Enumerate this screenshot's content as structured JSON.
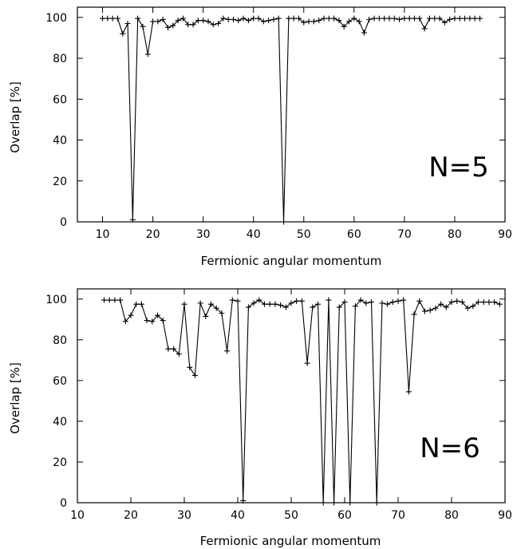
{
  "chart_data": [
    {
      "type": "line",
      "xlabel": "Fermionic angular momentum",
      "ylabel": "Overlap [%]",
      "annotation": "N=5",
      "xlim": [
        5,
        90
      ],
      "ylim": [
        0,
        105
      ],
      "xticks": [
        10,
        20,
        30,
        40,
        50,
        60,
        70,
        80,
        90
      ],
      "yticks": [
        0,
        20,
        40,
        60,
        80,
        100
      ],
      "marker": "plus",
      "color": "#000000",
      "series": [
        {
          "x": [
            10,
            11,
            12,
            13,
            14,
            15,
            16,
            17,
            18,
            19,
            20,
            21,
            22,
            23,
            24,
            25,
            26,
            27,
            28,
            29,
            30,
            31,
            32,
            33,
            34,
            35,
            36,
            37,
            38,
            39,
            40,
            41,
            42,
            43,
            44,
            45,
            46,
            47,
            48,
            49,
            50,
            51,
            52,
            53,
            54,
            55,
            56,
            57,
            58,
            59,
            60,
            61,
            62,
            63,
            64,
            65,
            66,
            67,
            68,
            69,
            70,
            71,
            72,
            73,
            74,
            75,
            76,
            77,
            78,
            79,
            80,
            81,
            82,
            83,
            84,
            85
          ],
          "y": [
            99.5,
            99.5,
            99.5,
            99.5,
            92,
            97,
            1,
            99.5,
            95.5,
            82,
            98,
            98,
            99,
            95,
            96,
            98.5,
            99.5,
            96.5,
            96.5,
            98.5,
            98.5,
            98,
            96.5,
            97,
            99.5,
            99,
            99,
            98.5,
            99.5,
            98.5,
            99.5,
            99.5,
            98,
            98.5,
            99,
            99.5,
            0,
            99.5,
            99.5,
            99.5,
            97.5,
            98,
            98,
            98.5,
            99.5,
            99.5,
            99.5,
            98.5,
            95.5,
            98,
            99.5,
            98,
            92.5,
            99,
            99.5,
            99.5,
            99.5,
            99.5,
            99.5,
            99,
            99.5,
            99.5,
            99.5,
            99.5,
            94.5,
            99.5,
            99.5,
            99.5,
            97.5,
            99,
            99.5,
            99.5,
            99.5,
            99.5,
            99.5,
            99.5
          ]
        }
      ]
    },
    {
      "type": "line",
      "xlabel": "Fermionic angular momentum",
      "ylabel": "Overlap [%]",
      "annotation": "N=6",
      "xlim": [
        10,
        90
      ],
      "ylim": [
        0,
        105
      ],
      "xticks": [
        10,
        20,
        30,
        40,
        50,
        60,
        70,
        80,
        90
      ],
      "yticks": [
        0,
        20,
        40,
        60,
        80,
        100
      ],
      "marker": "plus",
      "color": "#000000",
      "series": [
        {
          "x": [
            15,
            16,
            17,
            18,
            19,
            20,
            21,
            22,
            23,
            24,
            25,
            26,
            27,
            28,
            29,
            30,
            31,
            32,
            33,
            34,
            35,
            36,
            37,
            38,
            39,
            40,
            41,
            42,
            43,
            44,
            45,
            46,
            47,
            48,
            49,
            50,
            51,
            52,
            53,
            54,
            55,
            56,
            57,
            58,
            59,
            60,
            61,
            62,
            63,
            64,
            65,
            66,
            67,
            68,
            69,
            70,
            71,
            72,
            73,
            74,
            75,
            76,
            77,
            78,
            79,
            80,
            81,
            82,
            83,
            84,
            85,
            86,
            87,
            88,
            89
          ],
          "y": [
            99.5,
            99.5,
            99.5,
            99.5,
            89,
            92,
            97.5,
            97.5,
            89.5,
            89,
            92,
            89.5,
            75.5,
            75.5,
            73,
            97.5,
            66.5,
            62.5,
            98,
            91.5,
            97.5,
            95.5,
            93,
            74.5,
            99.5,
            99,
            1,
            96,
            98,
            99.5,
            97.5,
            97.5,
            97.5,
            97,
            96,
            98,
            99,
            99,
            68.5,
            96,
            97.5,
            0,
            99.5,
            0,
            96,
            98.5,
            0,
            96.5,
            99.5,
            98,
            98.5,
            0,
            98,
            97.5,
            98.5,
            99,
            99.5,
            54.5,
            92.5,
            99,
            94,
            94.5,
            95.5,
            97.5,
            96,
            98.5,
            99,
            98.5,
            95.5,
            96.5,
            98.5,
            98.5,
            98.5,
            98.5,
            97.5
          ]
        }
      ]
    }
  ]
}
